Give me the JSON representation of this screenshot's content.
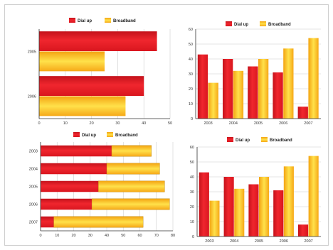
{
  "legend": {
    "series_a": "Dial up",
    "series_b": "Broadband"
  },
  "colors": {
    "dialup": "#e8212b",
    "broadband": "#fdb515"
  },
  "chart_data": [
    {
      "type": "bar",
      "orientation": "horizontal",
      "layout": "grouped",
      "position": "top-left",
      "categories": [
        "2005",
        "2006"
      ],
      "series": [
        {
          "name": "Dial up",
          "values": [
            45,
            40
          ]
        },
        {
          "name": "Broadband",
          "values": [
            25,
            33
          ]
        }
      ],
      "xlim": [
        0,
        50
      ],
      "xticks": [
        0,
        10,
        20,
        30,
        40,
        50
      ],
      "legend_position": "top"
    },
    {
      "type": "bar",
      "orientation": "vertical",
      "layout": "grouped",
      "position": "top-right",
      "categories": [
        "2003",
        "2004",
        "2005",
        "2006",
        "2007"
      ],
      "series": [
        {
          "name": "Dial up",
          "values": [
            43,
            40,
            35,
            31,
            8
          ]
        },
        {
          "name": "Broadband",
          "values": [
            24,
            32,
            40,
            47,
            54
          ]
        }
      ],
      "ylim": [
        0,
        60
      ],
      "yticks": [
        0,
        10,
        20,
        30,
        40,
        50,
        60
      ],
      "legend_position": "top"
    },
    {
      "type": "bar",
      "orientation": "horizontal",
      "layout": "stacked",
      "position": "bottom-left",
      "categories": [
        "2003",
        "2004",
        "2005",
        "2006",
        "2007"
      ],
      "series": [
        {
          "name": "Dial up",
          "values": [
            43,
            40,
            35,
            31,
            8
          ]
        },
        {
          "name": "Broadband",
          "values": [
            24,
            32,
            40,
            47,
            54
          ]
        }
      ],
      "xlim": [
        0,
        80
      ],
      "xticks": [
        0,
        10,
        20,
        30,
        40,
        50,
        60,
        70,
        80
      ],
      "legend_position": "top"
    },
    {
      "type": "bar",
      "orientation": "vertical",
      "layout": "grouped",
      "position": "bottom-right",
      "categories": [
        "2003",
        "2004",
        "2005",
        "2006",
        "2007"
      ],
      "series": [
        {
          "name": "Dial up",
          "values": [
            43,
            40,
            35,
            31,
            8
          ]
        },
        {
          "name": "Broadband",
          "values": [
            24,
            32,
            40,
            47,
            54
          ]
        }
      ],
      "ylim": [
        0,
        60
      ],
      "yticks": [
        0,
        10,
        20,
        30,
        40,
        50,
        60
      ],
      "legend_position": "top"
    }
  ]
}
